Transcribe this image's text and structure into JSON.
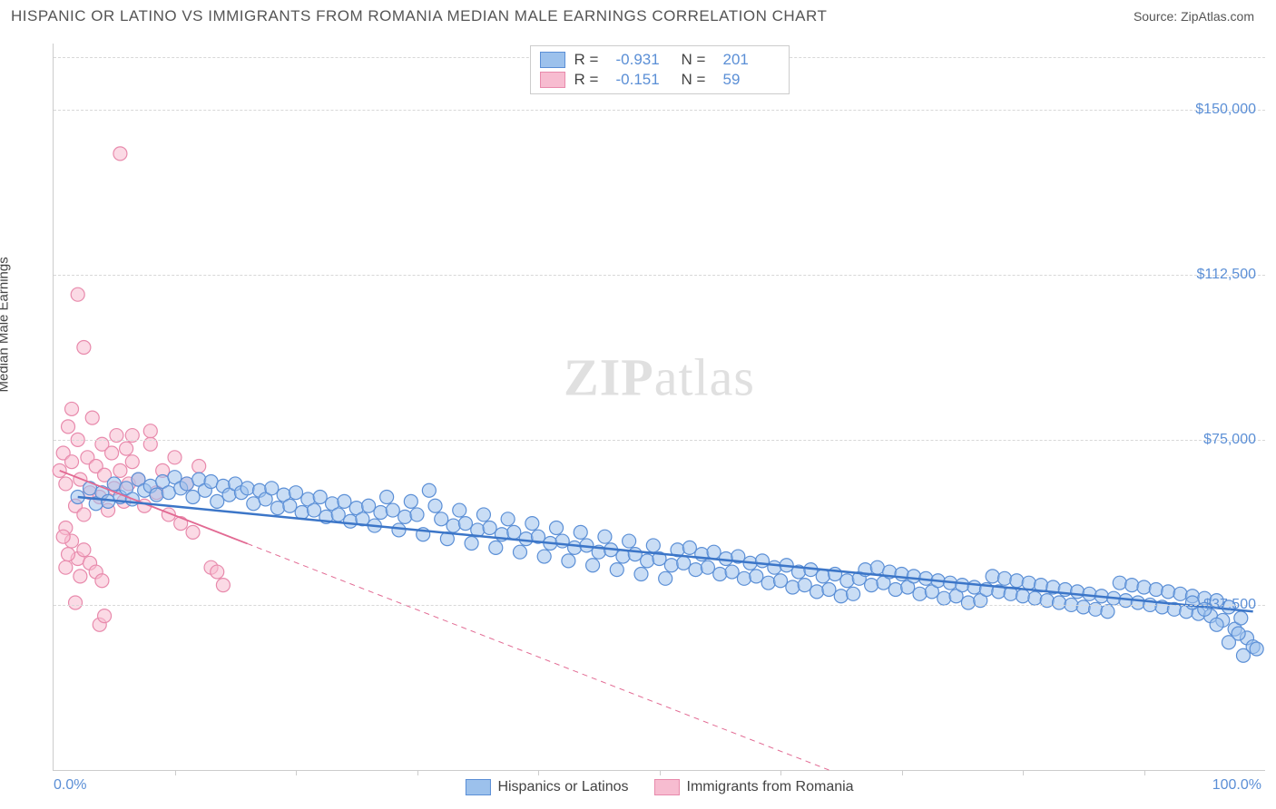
{
  "title": "HISPANIC OR LATINO VS IMMIGRANTS FROM ROMANIA MEDIAN MALE EARNINGS CORRELATION CHART",
  "source_prefix": "Source: ",
  "source_name": "ZipAtlas.com",
  "y_axis_label": "Median Male Earnings",
  "watermark": "ZIPatlas",
  "chart": {
    "type": "scatter",
    "xlim": [
      0,
      100
    ],
    "ylim": [
      0,
      165000
    ],
    "x_ticks_minor": [
      10,
      20,
      30,
      40,
      50,
      60,
      70,
      80,
      90
    ],
    "x_tick_labels": [
      {
        "pos": 0,
        "label": "0.0%",
        "anchor": "start"
      },
      {
        "pos": 100,
        "label": "100.0%",
        "anchor": "end"
      }
    ],
    "y_gridlines": [
      37500,
      75000,
      112500,
      150000,
      162000
    ],
    "y_tick_labels": [
      {
        "pos": 37500,
        "label": "$37,500"
      },
      {
        "pos": 75000,
        "label": "$75,000"
      },
      {
        "pos": 112500,
        "label": "$112,500"
      },
      {
        "pos": 150000,
        "label": "$150,000"
      }
    ],
    "series": [
      {
        "id": "hispanic",
        "label": "Hispanics or Latinos",
        "fill": "#9cc1ec",
        "stroke": "#5b8fd6",
        "fill_opacity": 0.55,
        "marker_r": 7.5,
        "R": "-0.931",
        "N": "201",
        "trend": {
          "x1": 2,
          "y1": 62000,
          "x2": 99,
          "y2": 36000,
          "solid_all": true,
          "color": "#3c76c8",
          "width": 2.5
        },
        "points": [
          [
            2,
            62000
          ],
          [
            3,
            64000
          ],
          [
            3.5,
            60500
          ],
          [
            4,
            63000
          ],
          [
            4.5,
            61000
          ],
          [
            5,
            65000
          ],
          [
            5.5,
            62000
          ],
          [
            6,
            64000
          ],
          [
            6.5,
            61500
          ],
          [
            7,
            66000
          ],
          [
            7.5,
            63500
          ],
          [
            8,
            64500
          ],
          [
            8.5,
            62500
          ],
          [
            9,
            65500
          ],
          [
            9.5,
            63000
          ],
          [
            10,
            66500
          ],
          [
            10.5,
            64000
          ],
          [
            11,
            65000
          ],
          [
            11.5,
            62000
          ],
          [
            12,
            66000
          ],
          [
            12.5,
            63500
          ],
          [
            13,
            65500
          ],
          [
            13.5,
            61000
          ],
          [
            14,
            64500
          ],
          [
            14.5,
            62500
          ],
          [
            15,
            65000
          ],
          [
            15.5,
            63000
          ],
          [
            16,
            64000
          ],
          [
            16.5,
            60500
          ],
          [
            17,
            63500
          ],
          [
            17.5,
            61500
          ],
          [
            18,
            64000
          ],
          [
            18.5,
            59500
          ],
          [
            19,
            62500
          ],
          [
            19.5,
            60000
          ],
          [
            20,
            63000
          ],
          [
            20.5,
            58500
          ],
          [
            21,
            61500
          ],
          [
            21.5,
            59000
          ],
          [
            22,
            62000
          ],
          [
            22.5,
            57500
          ],
          [
            23,
            60500
          ],
          [
            23.5,
            58000
          ],
          [
            24,
            61000
          ],
          [
            24.5,
            56500
          ],
          [
            25,
            59500
          ],
          [
            25.5,
            57000
          ],
          [
            26,
            60000
          ],
          [
            26.5,
            55500
          ],
          [
            27,
            58500
          ],
          [
            27.5,
            62000
          ],
          [
            28,
            59000
          ],
          [
            28.5,
            54500
          ],
          [
            29,
            57500
          ],
          [
            29.5,
            61000
          ],
          [
            30,
            58000
          ],
          [
            30.5,
            53500
          ],
          [
            31,
            63500
          ],
          [
            31.5,
            60000
          ],
          [
            32,
            57000
          ],
          [
            32.5,
            52500
          ],
          [
            33,
            55500
          ],
          [
            33.5,
            59000
          ],
          [
            34,
            56000
          ],
          [
            34.5,
            51500
          ],
          [
            35,
            54500
          ],
          [
            35.5,
            58000
          ],
          [
            36,
            55000
          ],
          [
            36.5,
            50500
          ],
          [
            37,
            53500
          ],
          [
            37.5,
            57000
          ],
          [
            38,
            54000
          ],
          [
            38.5,
            49500
          ],
          [
            39,
            52500
          ],
          [
            39.5,
            56000
          ],
          [
            40,
            53000
          ],
          [
            40.5,
            48500
          ],
          [
            41,
            51500
          ],
          [
            41.5,
            55000
          ],
          [
            42,
            52000
          ],
          [
            42.5,
            47500
          ],
          [
            43,
            50500
          ],
          [
            43.5,
            54000
          ],
          [
            44,
            51000
          ],
          [
            44.5,
            46500
          ],
          [
            45,
            49500
          ],
          [
            45.5,
            53000
          ],
          [
            46,
            50000
          ],
          [
            46.5,
            45500
          ],
          [
            47,
            48500
          ],
          [
            47.5,
            52000
          ],
          [
            48,
            49000
          ],
          [
            48.5,
            44500
          ],
          [
            49,
            47500
          ],
          [
            49.5,
            51000
          ],
          [
            50,
            48000
          ],
          [
            50.5,
            43500
          ],
          [
            51,
            46500
          ],
          [
            51.5,
            50000
          ],
          [
            52,
            47000
          ],
          [
            52.5,
            50500
          ],
          [
            53,
            45500
          ],
          [
            53.5,
            49000
          ],
          [
            54,
            46000
          ],
          [
            54.5,
            49500
          ],
          [
            55,
            44500
          ],
          [
            55.5,
            48000
          ],
          [
            56,
            45000
          ],
          [
            56.5,
            48500
          ],
          [
            57,
            43500
          ],
          [
            57.5,
            47000
          ],
          [
            58,
            44000
          ],
          [
            58.5,
            47500
          ],
          [
            59,
            42500
          ],
          [
            59.5,
            46000
          ],
          [
            60,
            43000
          ],
          [
            60.5,
            46500
          ],
          [
            61,
            41500
          ],
          [
            61.5,
            45000
          ],
          [
            62,
            42000
          ],
          [
            62.5,
            45500
          ],
          [
            63,
            40500
          ],
          [
            63.5,
            44000
          ],
          [
            64,
            41000
          ],
          [
            64.5,
            44500
          ],
          [
            65,
            39500
          ],
          [
            65.5,
            43000
          ],
          [
            66,
            40000
          ],
          [
            66.5,
            43500
          ],
          [
            67,
            45500
          ],
          [
            67.5,
            42000
          ],
          [
            68,
            46000
          ],
          [
            68.5,
            42500
          ],
          [
            69,
            45000
          ],
          [
            69.5,
            41000
          ],
          [
            70,
            44500
          ],
          [
            70.5,
            41500
          ],
          [
            71,
            44000
          ],
          [
            71.5,
            40000
          ],
          [
            72,
            43500
          ],
          [
            72.5,
            40500
          ],
          [
            73,
            43000
          ],
          [
            73.5,
            39000
          ],
          [
            74,
            42500
          ],
          [
            74.5,
            39500
          ],
          [
            75,
            42000
          ],
          [
            75.5,
            38000
          ],
          [
            76,
            41500
          ],
          [
            76.5,
            38500
          ],
          [
            77,
            41000
          ],
          [
            77.5,
            44000
          ],
          [
            78,
            40500
          ],
          [
            78.5,
            43500
          ],
          [
            79,
            40000
          ],
          [
            79.5,
            43000
          ],
          [
            80,
            39500
          ],
          [
            80.5,
            42500
          ],
          [
            81,
            39000
          ],
          [
            81.5,
            42000
          ],
          [
            82,
            38500
          ],
          [
            82.5,
            41500
          ],
          [
            83,
            38000
          ],
          [
            83.5,
            41000
          ],
          [
            84,
            37500
          ],
          [
            84.5,
            40500
          ],
          [
            85,
            37000
          ],
          [
            85.5,
            40000
          ],
          [
            86,
            36500
          ],
          [
            86.5,
            39500
          ],
          [
            87,
            36000
          ],
          [
            87.5,
            39000
          ],
          [
            88,
            42500
          ],
          [
            88.5,
            38500
          ],
          [
            89,
            42000
          ],
          [
            89.5,
            38000
          ],
          [
            90,
            41500
          ],
          [
            90.5,
            37500
          ],
          [
            91,
            41000
          ],
          [
            91.5,
            37000
          ],
          [
            92,
            40500
          ],
          [
            92.5,
            36500
          ],
          [
            93,
            40000
          ],
          [
            93.5,
            36000
          ],
          [
            94,
            39500
          ],
          [
            94.5,
            35500
          ],
          [
            95,
            39000
          ],
          [
            95.5,
            35000
          ],
          [
            96,
            38500
          ],
          [
            96.5,
            34000
          ],
          [
            97,
            37000
          ],
          [
            97.5,
            32000
          ],
          [
            98,
            34500
          ],
          [
            98.5,
            30000
          ],
          [
            99,
            28000
          ],
          [
            98.2,
            26000
          ],
          [
            97.8,
            31000
          ],
          [
            97,
            29000
          ],
          [
            96,
            33000
          ],
          [
            95,
            36500
          ],
          [
            94,
            38000
          ],
          [
            99.3,
            27500
          ]
        ]
      },
      {
        "id": "romania",
        "label": "Immigrants from Romania",
        "fill": "#f7bcd0",
        "stroke": "#e88aac",
        "fill_opacity": 0.55,
        "marker_r": 7.5,
        "R": "-0.151",
        "N": "59",
        "trend": {
          "x1": 0.5,
          "y1": 68000,
          "x2": 64,
          "y2": 0,
          "solid_until": 16,
          "color": "#e26a93",
          "width": 1.8
        },
        "points": [
          [
            0.5,
            68000
          ],
          [
            0.8,
            72000
          ],
          [
            1.0,
            65000
          ],
          [
            1.2,
            78000
          ],
          [
            1.5,
            70000
          ],
          [
            1.8,
            60000
          ],
          [
            2.0,
            75000
          ],
          [
            2.2,
            66000
          ],
          [
            2.5,
            58000
          ],
          [
            2.8,
            71000
          ],
          [
            3.0,
            63000
          ],
          [
            3.2,
            80000
          ],
          [
            3.5,
            69000
          ],
          [
            3.8,
            62000
          ],
          [
            4.0,
            74000
          ],
          [
            4.2,
            67000
          ],
          [
            4.5,
            59000
          ],
          [
            4.8,
            72000
          ],
          [
            5.0,
            64000
          ],
          [
            5.2,
            76000
          ],
          [
            5.5,
            68000
          ],
          [
            5.8,
            61000
          ],
          [
            6.0,
            73000
          ],
          [
            6.2,
            65000
          ],
          [
            6.5,
            70000
          ],
          [
            7.0,
            66000
          ],
          [
            7.5,
            60000
          ],
          [
            8.0,
            74000
          ],
          [
            8.5,
            63000
          ],
          [
            9.0,
            68000
          ],
          [
            9.5,
            58000
          ],
          [
            10.0,
            71000
          ],
          [
            10.5,
            56000
          ],
          [
            11.0,
            65000
          ],
          [
            11.5,
            54000
          ],
          [
            12.0,
            69000
          ],
          [
            13.0,
            46000
          ],
          [
            14.0,
            42000
          ],
          [
            13.5,
            45000
          ],
          [
            1.0,
            55000
          ],
          [
            1.5,
            52000
          ],
          [
            2.0,
            48000
          ],
          [
            2.5,
            50000
          ],
          [
            3.0,
            47000
          ],
          [
            1.2,
            49000
          ],
          [
            0.8,
            53000
          ],
          [
            2.2,
            44000
          ],
          [
            3.5,
            45000
          ],
          [
            4.0,
            43000
          ],
          [
            1.0,
            46000
          ],
          [
            5.5,
            140000
          ],
          [
            2.0,
            108000
          ],
          [
            2.5,
            96000
          ],
          [
            1.5,
            82000
          ],
          [
            6.5,
            76000
          ],
          [
            8.0,
            77000
          ],
          [
            3.8,
            33000
          ],
          [
            4.2,
            35000
          ],
          [
            1.8,
            38000
          ]
        ]
      }
    ]
  },
  "legend_bottom": [
    {
      "series": "hispanic",
      "label": "Hispanics or Latinos"
    },
    {
      "series": "romania",
      "label": "Immigrants from Romania"
    }
  ]
}
